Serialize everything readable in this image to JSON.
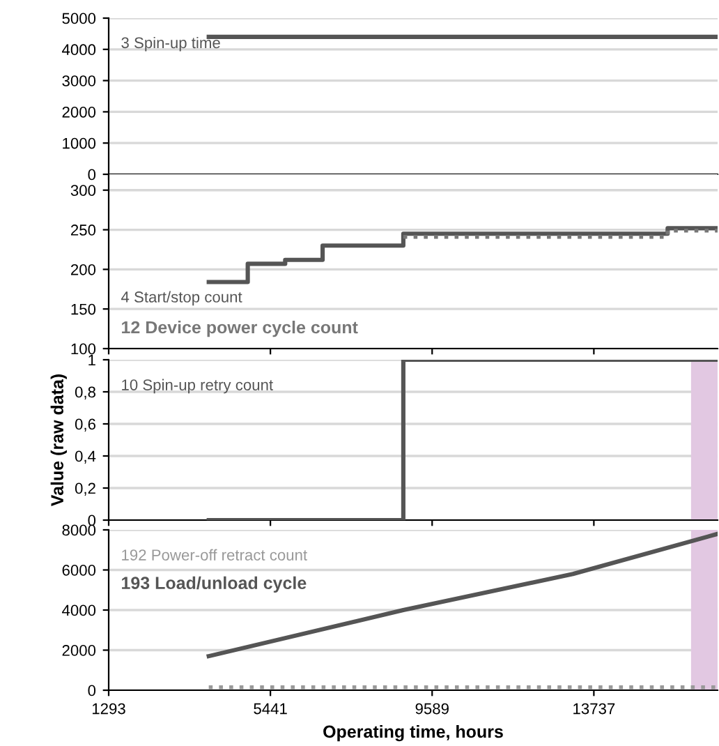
{
  "chart_data": [
    {
      "type": "step",
      "xlim": [
        1293,
        16910
      ],
      "xticks": [
        {
          "value": 1293,
          "label": null
        },
        {
          "value": 5441,
          "label": null
        },
        {
          "value": 9589,
          "label": null
        },
        {
          "value": 13737,
          "label": null
        }
      ],
      "ylim": [
        0,
        5000
      ],
      "yticks": [
        0,
        1000,
        2000,
        3000,
        4000,
        5000
      ],
      "grid": "y",
      "tick_labels": "y",
      "legend": false,
      "series": [
        {
          "name": "3 Spin-up time",
          "color": "#555555",
          "x": [
            3860,
            16910
          ],
          "values": [
            4400,
            4400
          ]
        }
      ]
    },
    {
      "type": "step",
      "xlim": [
        1293,
        16910
      ],
      "xticks": [
        {
          "value": 1293,
          "label": null
        },
        {
          "value": 5441,
          "label": null
        },
        {
          "value": 9589,
          "label": null
        },
        {
          "value": 13737,
          "label": null
        }
      ],
      "ylim": [
        100,
        320
      ],
      "yticks": [
        100,
        150,
        200,
        250,
        300
      ],
      "grid": "y",
      "tick_labels": "y",
      "legend": false,
      "series": [
        {
          "name": "4 Start/stop count",
          "color": "#555555",
          "x": [
            3860,
            4860,
            5820,
            6780,
            8850,
            15630,
            16910
          ],
          "values": [
            184,
            207,
            212,
            230,
            245,
            252,
            252
          ]
        },
        {
          "name": "12 Device power cycle count",
          "color": "#777777",
          "line_style": "dotted",
          "x": [
            8850,
            15630,
            16910
          ],
          "values": [
            241,
            249,
            249
          ]
        }
      ]
    },
    {
      "type": "step",
      "xlim": [
        1293,
        16910
      ],
      "xticks": [
        {
          "value": 1293,
          "label": null
        },
        {
          "value": 5441,
          "label": null
        },
        {
          "value": 9589,
          "label": null
        },
        {
          "value": 13737,
          "label": null
        }
      ],
      "ylim": [
        0,
        1
      ],
      "yticks": [
        0,
        {
          "value": 0.2,
          "label": "0,2"
        },
        {
          "value": 0.4,
          "label": "0,4"
        },
        {
          "value": 0.6,
          "label": "0,6"
        },
        {
          "value": 0.8,
          "label": "0,8"
        },
        1
      ],
      "grid": "y",
      "tick_labels": "y",
      "legend": false,
      "ylabel": "Value (raw data)",
      "bands": [
        {
          "axis": "x",
          "from": 16230,
          "to": 16910,
          "color": "#e2c8e2"
        }
      ],
      "series": [
        {
          "name": "10 Spin-up retry count",
          "color": "#555555",
          "x": [
            3860,
            8850,
            16910
          ],
          "values": [
            0,
            1,
            1
          ]
        }
      ]
    },
    {
      "type": "line",
      "xlim": [
        1293,
        16910
      ],
      "xticks": [
        {
          "value": 1293,
          "label": "1293"
        },
        {
          "value": 5441,
          "label": "5441"
        },
        {
          "value": 9589,
          "label": "9589"
        },
        {
          "value": 13737,
          "label": "13737"
        }
      ],
      "ylim": [
        0,
        8000
      ],
      "yticks": [
        0,
        2000,
        4000,
        6000,
        8000
      ],
      "grid": "y",
      "legend": false,
      "xlabel": "Operating time, hours",
      "bands": [
        {
          "axis": "x",
          "from": 16230,
          "to": 16910,
          "color": "#e2c8e2"
        }
      ],
      "series": [
        {
          "name": "192 Power-off retract count",
          "color": "#999999",
          "line_style": "dotted",
          "x": [
            3860,
            16910
          ],
          "values": [
            150,
            150
          ]
        },
        {
          "name": "193 Load/unload cycle",
          "color": "#555555",
          "x": [
            3860,
            8850,
            13200,
            16910
          ],
          "values": [
            1700,
            4000,
            5800,
            7800
          ]
        }
      ]
    }
  ]
}
